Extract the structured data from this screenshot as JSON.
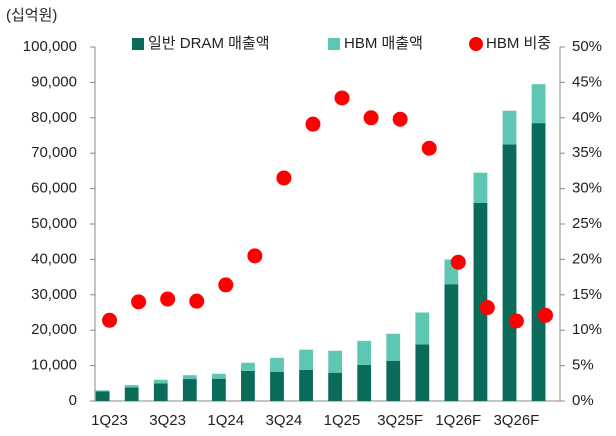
{
  "chart_data": {
    "type": "bar_line",
    "y_axis_label": "(십억원)",
    "categories": [
      "1Q23",
      null,
      "3Q23",
      null,
      "1Q24",
      null,
      "3Q24",
      null,
      "1Q25",
      null,
      "3Q25F",
      null,
      "1Q26F",
      null,
      "3Q26F",
      null
    ],
    "series": [
      {
        "name": "일반 DRAM 매출액",
        "color": "#0b6b5a",
        "type": "bar",
        "values": [
          2700,
          3800,
          5000,
          6200,
          6300,
          8500,
          8200,
          8800,
          8000,
          10200,
          11300,
          16000,
          33000,
          56000,
          72500,
          78500
        ]
      },
      {
        "name": "HBM 매출액",
        "color": "#5ec7b3",
        "type": "bar",
        "values": [
          300,
          700,
          1000,
          1100,
          1400,
          2300,
          4000,
          5700,
          6200,
          6800,
          7700,
          9000,
          7000,
          8500,
          9500,
          11000
        ]
      },
      {
        "name": "HBM 비중",
        "color": "#ff0000",
        "type": "scatter",
        "axis": "y2",
        "values": [
          11.4,
          14.0,
          14.4,
          14.1,
          16.4,
          20.5,
          31.5,
          39.1,
          42.8,
          40.0,
          39.8,
          35.7,
          19.6,
          13.2,
          11.3,
          12.1
        ]
      }
    ],
    "ylim": [
      0,
      100000
    ],
    "yticks": [
      0,
      {
        "value": 10000,
        "label": "10,000"
      },
      {
        "value": 20000,
        "label": "20,000"
      },
      {
        "value": 30000,
        "label": "30,000"
      },
      {
        "value": 40000,
        "label": "40,000"
      },
      {
        "value": 50000,
        "label": "50,000"
      },
      {
        "value": 60000,
        "label": "60,000"
      },
      {
        "value": 70000,
        "label": "70,000"
      },
      {
        "value": 80000,
        "label": "80,000"
      },
      {
        "value": 90000,
        "label": "90,000"
      },
      {
        "value": 100000,
        "label": "100,000"
      }
    ],
    "y2lim": [
      0,
      50
    ],
    "y2ticks": [
      {
        "value": 0,
        "label": "0%"
      },
      {
        "value": 5,
        "label": "5%"
      },
      {
        "value": 10,
        "label": "10%"
      },
      {
        "value": 15,
        "label": "15%"
      },
      {
        "value": 20,
        "label": "20%"
      },
      {
        "value": 25,
        "label": "25%"
      },
      {
        "value": 30,
        "label": "30%"
      },
      {
        "value": 35,
        "label": "35%"
      },
      {
        "value": 40,
        "label": "40%"
      },
      {
        "value": 45,
        "label": "45%"
      },
      {
        "value": 50,
        "label": "50%"
      }
    ],
    "legend": "top"
  }
}
